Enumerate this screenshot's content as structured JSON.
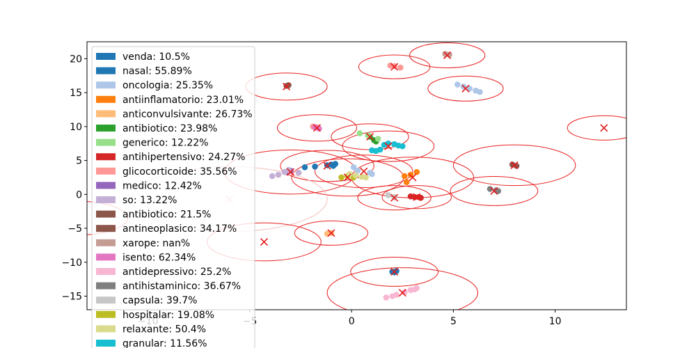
{
  "chart_data": {
    "type": "scatter",
    "title": "",
    "xlabel": "",
    "ylabel": "",
    "xlim": [
      -13,
      13.5
    ],
    "ylim": [
      -17,
      22.5
    ],
    "xticks": [
      -10,
      -5,
      0,
      5,
      10
    ],
    "yticks": [
      -15,
      -10,
      -5,
      0,
      5,
      10,
      15,
      20
    ],
    "xtick_labels": [
      "−10",
      "−5",
      "0",
      "5",
      "10"
    ],
    "ytick_labels": [
      "−15",
      "−10",
      "−5",
      "0",
      "5",
      "10",
      "15",
      "20"
    ],
    "grid": false,
    "legend_placement": "upper left",
    "legend": [
      {
        "label": "venda: 10.5%",
        "color": "#1f77b4"
      },
      {
        "label": "nasal: 55.89%",
        "color": "#1f77b4"
      },
      {
        "label": "oncologia: 25.35%",
        "color": "#aec7e8"
      },
      {
        "label": "antiinflamatorio: 23.01%",
        "color": "#ff7f0e"
      },
      {
        "label": "anticonvulsivante: 26.73%",
        "color": "#ffbb78"
      },
      {
        "label": "antibiotico: 23.98%",
        "color": "#2ca02c"
      },
      {
        "label": "generico: 12.22%",
        "color": "#98df8a"
      },
      {
        "label": "antihipertensivo: 24.27%",
        "color": "#d62728"
      },
      {
        "label": "glicocorticoide: 35.56%",
        "color": "#ff9896"
      },
      {
        "label": "medico: 12.42%",
        "color": "#9467bd"
      },
      {
        "label": "so: 13.22%",
        "color": "#c5b0d5"
      },
      {
        "label": "antibiotico: 21.5%",
        "color": "#8c564b"
      },
      {
        "label": "antineoplasico: 34.17%",
        "color": "#8c564b"
      },
      {
        "label": "xarope: nan%",
        "color": "#c49c94"
      },
      {
        "label": "isento: 62.34%",
        "color": "#e377c2"
      },
      {
        "label": "antidepressivo: 25.2%",
        "color": "#f7b6d2"
      },
      {
        "label": "antihistaminico: 36.67%",
        "color": "#7f7f7f"
      },
      {
        "label": "capsula: 39.7%",
        "color": "#c7c7c7"
      },
      {
        "label": "hospitalar: 19.08%",
        "color": "#bcbd22"
      },
      {
        "label": "relaxante: 50.4%",
        "color": "#dbdb8d"
      },
      {
        "label": "granular: 11.56%",
        "color": "#17becf"
      }
    ],
    "point_groups": [
      {
        "color": "#1f77b4",
        "points": [
          [
            -2.3,
            4.0
          ],
          [
            -1.8,
            4.1
          ],
          [
            -1.2,
            4.3
          ],
          [
            -1.0,
            4.4
          ],
          [
            -0.8,
            4.5
          ],
          [
            -0.9,
            4.2
          ]
        ]
      },
      {
        "color": "#1f77b4",
        "points": [
          [
            2.0,
            -11.4
          ],
          [
            2.1,
            -11.5
          ],
          [
            2.2,
            -11.3
          ]
        ]
      },
      {
        "color": "#aec7e8",
        "points": [
          [
            5.2,
            16.2
          ],
          [
            5.5,
            15.9
          ],
          [
            5.8,
            15.6
          ],
          [
            6.1,
            15.3
          ],
          [
            6.3,
            15.1
          ]
        ]
      },
      {
        "color": "#aec7e8",
        "points": [
          [
            0.1,
            4.0
          ],
          [
            0.3,
            3.5
          ],
          [
            0.9,
            3.2
          ],
          [
            1.0,
            3.0
          ]
        ]
      },
      {
        "color": "#ff7f0e",
        "points": [
          [
            2.6,
            2.7
          ],
          [
            2.9,
            2.9
          ],
          [
            3.2,
            3.3
          ],
          [
            2.7,
            1.8
          ]
        ]
      },
      {
        "color": "#ffbb78",
        "points": [
          [
            -1.2,
            -5.8
          ],
          [
            -1.0,
            -5.7
          ]
        ]
      },
      {
        "color": "#2ca02c",
        "points": [
          [
            0.9,
            8.5
          ],
          [
            1.1,
            8.0
          ],
          [
            1.2,
            7.8
          ]
        ]
      },
      {
        "color": "#98df8a",
        "points": [
          [
            0.4,
            9.0
          ],
          [
            0.8,
            8.7
          ],
          [
            1.3,
            8.2
          ]
        ]
      },
      {
        "color": "#d62728",
        "points": [
          [
            2.9,
            -0.3
          ],
          [
            3.1,
            -0.4
          ],
          [
            3.3,
            -0.4
          ],
          [
            3.4,
            -0.5
          ]
        ]
      },
      {
        "color": "#ff9896",
        "points": [
          [
            1.9,
            19.0
          ],
          [
            2.1,
            18.9
          ],
          [
            2.4,
            18.7
          ]
        ]
      },
      {
        "color": "#ff9896",
        "points": [
          [
            -1.9,
            10.0
          ],
          [
            -1.7,
            9.9
          ]
        ]
      },
      {
        "color": "#9467bd",
        "points": [
          [
            -3.2,
            3.3
          ],
          [
            -3.0,
            3.5
          ]
        ]
      },
      {
        "color": "#c5b0d5",
        "points": [
          [
            -3.6,
            2.9
          ],
          [
            -3.3,
            3.3
          ],
          [
            -3.1,
            3.6
          ],
          [
            -2.6,
            3.2
          ],
          [
            -3.9,
            2.7
          ]
        ]
      },
      {
        "color": "#8c564b",
        "points": [
          [
            7.9,
            4.4
          ],
          [
            8.1,
            4.2
          ]
        ]
      },
      {
        "color": "#8c564b",
        "points": [
          [
            -3.2,
            16.0
          ],
          [
            -3.1,
            16.1
          ]
        ]
      },
      {
        "color": "#c49c94",
        "points": [
          [
            4.6,
            20.7
          ],
          [
            4.8,
            20.6
          ]
        ]
      },
      {
        "color": "#e377c2",
        "points": [
          [
            -1.8,
            9.9
          ],
          [
            -1.6,
            9.7
          ]
        ]
      },
      {
        "color": "#f7b6d2",
        "points": [
          [
            1.7,
            -15.2
          ],
          [
            2.0,
            -15.0
          ],
          [
            2.2,
            -14.8
          ],
          [
            2.6,
            -14.4
          ],
          [
            2.9,
            -14.1
          ],
          [
            3.2,
            -13.8
          ],
          [
            3.1,
            -14.0
          ]
        ]
      },
      {
        "color": "#7f7f7f",
        "points": [
          [
            6.8,
            0.8
          ],
          [
            7.1,
            0.6
          ],
          [
            7.2,
            0.5
          ]
        ]
      },
      {
        "color": "#c7c7c7",
        "points": [
          [
            1.8,
            -0.1
          ],
          [
            2.1,
            -0.4
          ]
        ]
      },
      {
        "color": "#bcbd22",
        "points": [
          [
            -0.5,
            2.5
          ],
          [
            -0.2,
            2.7
          ],
          [
            0.1,
            2.5
          ]
        ]
      },
      {
        "color": "#dbdb8d",
        "points": [
          [
            -0.1,
            3.0
          ],
          [
            0.2,
            2.8
          ],
          [
            0.5,
            2.6
          ],
          [
            0.7,
            2.5
          ]
        ]
      },
      {
        "color": "#17becf",
        "points": [
          [
            1.0,
            6.5
          ],
          [
            1.4,
            6.6
          ],
          [
            1.6,
            7.3
          ],
          [
            1.8,
            7.5
          ],
          [
            2.1,
            7.4
          ],
          [
            2.3,
            7.2
          ],
          [
            2.5,
            7.1
          ],
          [
            1.2,
            6.4
          ]
        ]
      }
    ],
    "centroids": [
      {
        "x": -3.2,
        "y": 15.9,
        "rx": 2.0,
        "ry": 2.0,
        "faint": false
      },
      {
        "x": 2.1,
        "y": 18.8,
        "rx": 1.75,
        "ry": 1.75,
        "faint": false
      },
      {
        "x": 4.7,
        "y": 20.5,
        "rx": 1.85,
        "ry": 1.85,
        "faint": false
      },
      {
        "x": 5.6,
        "y": 15.6,
        "rx": 1.85,
        "ry": 1.85,
        "faint": false
      },
      {
        "x": -1.7,
        "y": 9.8,
        "rx": 1.95,
        "ry": 1.95,
        "faint": false
      },
      {
        "x": 0.9,
        "y": 8.5,
        "rx": 1.9,
        "ry": 1.9,
        "faint": false
      },
      {
        "x": 1.8,
        "y": 7.1,
        "rx": 2.25,
        "ry": 2.25,
        "faint": false
      },
      {
        "x": 12.4,
        "y": 9.8,
        "rx": 1.8,
        "ry": 1.8,
        "faint": false
      },
      {
        "x": 8.0,
        "y": 4.3,
        "rx": 3.0,
        "ry": 3.0,
        "faint": false
      },
      {
        "x": -1.2,
        "y": 4.2,
        "rx": 2.3,
        "ry": 2.3,
        "faint": false
      },
      {
        "x": 0.6,
        "y": 3.4,
        "rx": 2.4,
        "ry": 2.4,
        "faint": false
      },
      {
        "x": -3.0,
        "y": 3.3,
        "rx": 3.25,
        "ry": 3.25,
        "faint": false
      },
      {
        "x": 3.0,
        "y": 2.5,
        "rx": 3.0,
        "ry": 3.0,
        "faint": false
      },
      {
        "x": -0.2,
        "y": 2.5,
        "rx": 2.75,
        "ry": 2.75,
        "faint": false
      },
      {
        "x": 7.0,
        "y": 0.5,
        "rx": 2.15,
        "ry": 2.15,
        "faint": false
      },
      {
        "x": 2.1,
        "y": -0.5,
        "rx": 1.8,
        "ry": 1.8,
        "faint": false
      },
      {
        "x": 3.2,
        "y": -0.4,
        "rx": 1.7,
        "ry": 1.7,
        "faint": false
      },
      {
        "x": -6.0,
        "y": -0.7,
        "rx": 4.8,
        "ry": 4.8,
        "faint": true
      },
      {
        "x": -1.0,
        "y": -5.7,
        "rx": 1.8,
        "ry": 1.8,
        "faint": false
      },
      {
        "x": -4.3,
        "y": -7.0,
        "rx": 2.8,
        "ry": 2.8,
        "faint": false
      },
      {
        "x": 2.1,
        "y": -11.4,
        "rx": 2.15,
        "ry": 2.15,
        "faint": false
      },
      {
        "x": 2.5,
        "y": -14.5,
        "rx": 3.7,
        "ry": 3.7,
        "faint": false
      },
      {
        "x": -13.5,
        "y": -3.5,
        "rx": 2.5,
        "ry": 2.5,
        "faint": false
      }
    ]
  }
}
